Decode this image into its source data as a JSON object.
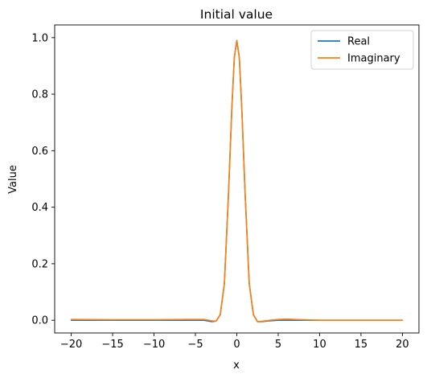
{
  "chart_data": {
    "type": "line",
    "title": "Initial value",
    "xlabel": "x",
    "ylabel": "Value",
    "xlim": [
      -22.0,
      22.0
    ],
    "ylim": [
      -0.045,
      1.045
    ],
    "xticks": [
      -20,
      -15,
      -10,
      -5,
      0,
      5,
      10,
      15,
      20
    ],
    "xtick_labels": [
      "−20",
      "−15",
      "−10",
      "−5",
      "0",
      "5",
      "10",
      "15",
      "20"
    ],
    "yticks": [
      0.0,
      0.2,
      0.4,
      0.6,
      0.8,
      1.0
    ],
    "ytick_labels": [
      "0.0",
      "0.2",
      "0.4",
      "0.6",
      "0.8",
      "1.0"
    ],
    "grid": false,
    "legend_position": "top-right",
    "series": [
      {
        "name": "Real",
        "color": "#1f77b4",
        "x": [
          -20,
          -15,
          -10,
          -6,
          -4,
          -3,
          -2.5,
          -2,
          -1.5,
          -1,
          -0.6,
          -0.3,
          0,
          0.3,
          0.6,
          1,
          1.5,
          2,
          2.5,
          3,
          4,
          5,
          6,
          8,
          10,
          15,
          20
        ],
        "y": [
          0.0,
          0.0,
          0.0,
          0.0,
          0.0,
          -0.005,
          -0.003,
          0.02,
          0.13,
          0.45,
          0.75,
          0.93,
          0.99,
          0.93,
          0.75,
          0.45,
          0.13,
          0.02,
          -0.005,
          -0.005,
          -0.002,
          0.0,
          0.0,
          0.0,
          0.0,
          0.0,
          0.0
        ]
      },
      {
        "name": "Imaginary",
        "color": "#ff7f0e",
        "x": [
          -20,
          -15,
          -10,
          -6,
          -4,
          -3,
          -2.5,
          -2,
          -1.5,
          -1,
          -0.6,
          -0.3,
          0,
          0.3,
          0.6,
          1,
          1.5,
          2,
          2.5,
          3,
          4,
          5,
          6,
          7,
          8,
          10,
          12,
          15,
          20
        ],
        "y": [
          0.003,
          0.002,
          0.002,
          0.003,
          0.003,
          -0.002,
          -0.003,
          0.02,
          0.13,
          0.45,
          0.75,
          0.93,
          0.99,
          0.93,
          0.75,
          0.45,
          0.13,
          0.02,
          -0.005,
          -0.004,
          0.0,
          0.003,
          0.004,
          0.003,
          0.002,
          0.0,
          0.0,
          0.0,
          0.0
        ]
      }
    ]
  }
}
